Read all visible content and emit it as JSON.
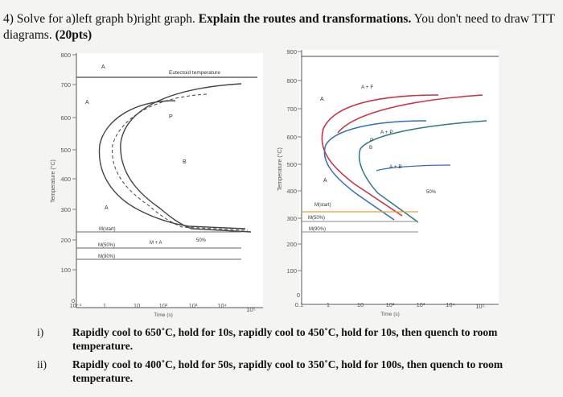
{
  "header": {
    "prefix": "4) Solve for a)left graph b)right graph. ",
    "bold": "Explain the routes and transformations.",
    "suffix": " You don't need to draw TTT diagrams. ",
    "points": "(20pts)"
  },
  "left_graph": {
    "y_ticks": [
      "800",
      "700",
      "600",
      "500",
      "400",
      "300",
      "200",
      "100",
      "0"
    ],
    "x_ticks": [
      "10⁻¹",
      "1",
      "10",
      "10²",
      "10³",
      "10⁴",
      "10⁵"
    ],
    "ylabel": "Temperature (°C)",
    "xlabel": "Time (s)",
    "labels": {
      "a_top": "A",
      "eutectoid": "Eutectoid temperature",
      "a_left": "A",
      "p": "P",
      "b": "B",
      "a_lower": "A",
      "mstart": "M(start)",
      "m50": "M(50%)",
      "m90": "M(90%)",
      "ma": "M + A",
      "pct50": "50%"
    }
  },
  "right_graph": {
    "y_ticks": [
      "900",
      "800",
      "700",
      "600",
      "500",
      "400",
      "300",
      "200",
      "100",
      "0"
    ],
    "x_ticks": [
      "0.1",
      "1",
      "10",
      "10²",
      "10³",
      "10⁴",
      "10⁵"
    ],
    "ylabel": "Temperature (°C)",
    "xlabel": "Time (s)",
    "labels": {
      "a_top": "A",
      "af": "A + F",
      "ap": "A + P",
      "p": "P",
      "b": "B",
      "ab": "A + B",
      "a_mid": "A",
      "pct50": "50%",
      "mstart": "M(start)",
      "m50": "M(50%)",
      "m90": "M(90%)"
    }
  },
  "questions": [
    {
      "num": "i)",
      "text": "Rapidly cool to 650˚C, hold for 10s, rapidly cool to 450˚C, hold for 10s, then quench to room temperature."
    },
    {
      "num": "ii)",
      "text": "Rapidly cool to 400˚C, hold for 50s, rapidly cool to 350˚C, hold for 100s, then quench to room temperature."
    }
  ],
  "colors": {
    "paper": "#f4f4f2",
    "graph_bg": "#ffffff",
    "red_curve": "#cc3344",
    "blue_curve": "#2f6fb5",
    "teal_curve": "#2b7a86",
    "m_line": "#e0a24a"
  }
}
